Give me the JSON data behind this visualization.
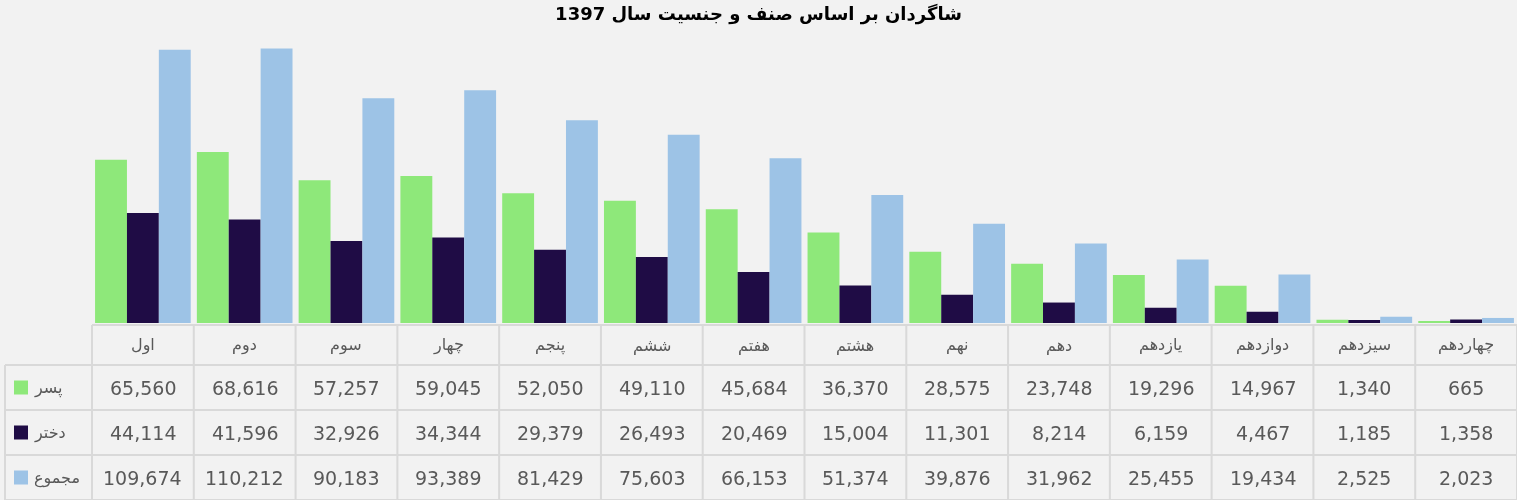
{
  "chart_data": {
    "type": "bar",
    "title": "شاگردان بر اساس صنف و جنسیت سال 1397",
    "categories": [
      "اول",
      "دوم",
      "سوم",
      "چهار",
      "پنجم",
      "ششم",
      "هفتم",
      "هشتم",
      "نهم",
      "دهم",
      "یازدهم",
      "دوازدهم",
      "سیزدهم",
      "چهاردهم"
    ],
    "series": [
      {
        "name": "پسر",
        "color": "#8ee87a",
        "values": [
          65560,
          68616,
          57257,
          59045,
          52050,
          49110,
          45684,
          36370,
          28575,
          23748,
          19296,
          14967,
          1340,
          665
        ],
        "value_labels": [
          "65,560",
          "68,616",
          "57,257",
          "59,045",
          "52,050",
          "49,110",
          "45,684",
          "36,370",
          "28,575",
          "23,748",
          "19,296",
          "14,967",
          "1,340",
          "665"
        ]
      },
      {
        "name": "دختر",
        "color": "#1f0c45",
        "values": [
          44114,
          41596,
          32926,
          34344,
          29379,
          26493,
          20469,
          15004,
          11301,
          8214,
          6159,
          4467,
          1185,
          1358
        ],
        "value_labels": [
          "44,114",
          "41,596",
          "32,926",
          "34,344",
          "29,379",
          "26,493",
          "20,469",
          "15,004",
          "11,301",
          "8,214",
          "6,159",
          "4,467",
          "1,185",
          "1,358"
        ]
      },
      {
        "name": "مجموع",
        "color": "#9dc3e6",
        "values": [
          109674,
          110212,
          90183,
          93389,
          81429,
          75603,
          66153,
          51374,
          39876,
          31962,
          25455,
          19434,
          2525,
          2023
        ],
        "value_labels": [
          "109,674",
          "110,212",
          "90,183",
          "93,389",
          "81,429",
          "75,603",
          "66,153",
          "51,374",
          "39,876",
          "31,962",
          "25,455",
          "19,434",
          "2,525",
          "2,023"
        ]
      }
    ],
    "legend": "bottom left",
    "grid": false
  }
}
